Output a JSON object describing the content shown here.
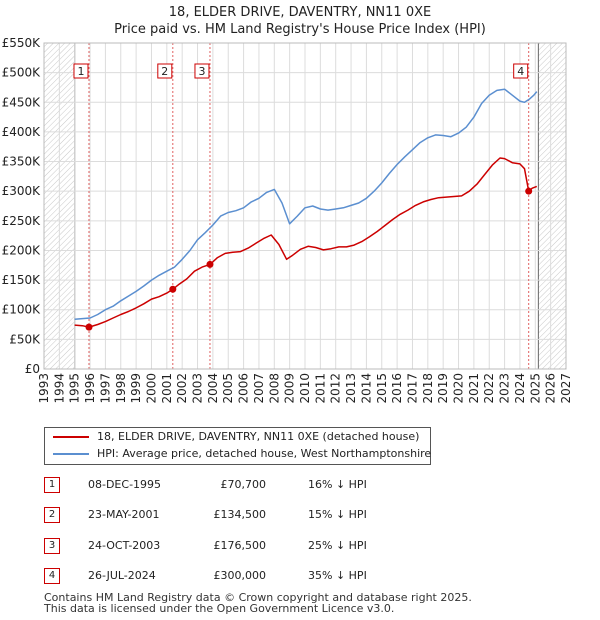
{
  "chart_data": {
    "type": "line",
    "title": "18, ELDER DRIVE, DAVENTRY, NN11 0XE",
    "subtitle": "Price paid vs. HM Land Registry's House Price Index (HPI)",
    "xlim": [
      1993,
      2027
    ],
    "ylim": [
      0,
      550000
    ],
    "x_ticks": [
      "1993",
      "1994",
      "1995",
      "1996",
      "1997",
      "1998",
      "1999",
      "2000",
      "2001",
      "2002",
      "2003",
      "2004",
      "2005",
      "2006",
      "2007",
      "2008",
      "2009",
      "2010",
      "2011",
      "2012",
      "2013",
      "2014",
      "2015",
      "2016",
      "2017",
      "2018",
      "2019",
      "2020",
      "2021",
      "2022",
      "2023",
      "2024",
      "2025",
      "2026",
      "2027"
    ],
    "y_ticks": [
      {
        "value": 0,
        "label": "£0"
      },
      {
        "value": 50000,
        "label": "£50K"
      },
      {
        "value": 100000,
        "label": "£100K"
      },
      {
        "value": 150000,
        "label": "£150K"
      },
      {
        "value": 200000,
        "label": "£200K"
      },
      {
        "value": 250000,
        "label": "£250K"
      },
      {
        "value": 300000,
        "label": "£300K"
      },
      {
        "value": 350000,
        "label": "£350K"
      },
      {
        "value": 400000,
        "label": "£400K"
      },
      {
        "value": 450000,
        "label": "£450K"
      },
      {
        "value": 500000,
        "label": "£500K"
      },
      {
        "value": 550000,
        "label": "£550K"
      }
    ],
    "grid": true,
    "data_range": [
      1995,
      2025.2
    ],
    "series": [
      {
        "name": "18, ELDER DRIVE, DAVENTRY, NN11 0XE (detached house)",
        "color": "#cc0000",
        "x": [
          1995.0,
          1995.5,
          1995.93,
          1996.5,
          1997.0,
          1997.5,
          1998.0,
          1998.5,
          1999.0,
          1999.5,
          2000.0,
          2000.5,
          2001.0,
          2001.39,
          2001.8,
          2002.3,
          2002.8,
          2003.3,
          2003.81,
          2004.3,
          2004.8,
          2005.3,
          2005.8,
          2006.3,
          2006.8,
          2007.3,
          2007.8,
          2008.3,
          2008.8,
          2009.2,
          2009.7,
          2010.2,
          2010.7,
          2011.2,
          2011.7,
          2012.2,
          2012.7,
          2013.2,
          2013.7,
          2014.2,
          2014.7,
          2015.2,
          2015.7,
          2016.2,
          2016.7,
          2017.2,
          2017.7,
          2018.2,
          2018.7,
          2019.2,
          2019.7,
          2020.2,
          2020.7,
          2021.2,
          2021.7,
          2022.2,
          2022.7,
          2023.0,
          2023.5,
          2024.0,
          2024.3,
          2024.57,
          2024.8,
          2025.1
        ],
        "y": [
          74000,
          73000,
          70700,
          75000,
          80000,
          86000,
          92000,
          97000,
          103000,
          110000,
          118000,
          122000,
          128000,
          134500,
          143000,
          152000,
          165000,
          172000,
          176500,
          188000,
          195000,
          197000,
          198000,
          204000,
          212000,
          220000,
          226000,
          210000,
          185000,
          192000,
          202000,
          207000,
          205000,
          201000,
          203000,
          206000,
          206000,
          209000,
          215000,
          223000,
          232000,
          242000,
          252000,
          261000,
          268000,
          276000,
          282000,
          286000,
          289000,
          290000,
          291000,
          292000,
          300000,
          312000,
          328000,
          344000,
          356000,
          355000,
          348000,
          346000,
          338000,
          300000,
          305000,
          308000
        ]
      },
      {
        "name": "HPI: Average price, detached house, West Northamptonshire",
        "color": "#5b8fd0",
        "x": [
          1995.0,
          1995.5,
          1996.0,
          1996.5,
          1997.0,
          1997.5,
          1998.0,
          1998.5,
          1999.0,
          1999.5,
          2000.0,
          2000.5,
          2001.0,
          2001.5,
          2002.0,
          2002.5,
          2003.0,
          2003.5,
          2004.0,
          2004.5,
          2005.0,
          2005.5,
          2006.0,
          2006.5,
          2007.0,
          2007.5,
          2008.0,
          2008.5,
          2009.0,
          2009.5,
          2010.0,
          2010.5,
          2011.0,
          2011.5,
          2012.0,
          2012.5,
          2013.0,
          2013.5,
          2014.0,
          2014.5,
          2015.0,
          2015.5,
          2016.0,
          2016.5,
          2017.0,
          2017.5,
          2018.0,
          2018.5,
          2019.0,
          2019.5,
          2020.0,
          2020.5,
          2021.0,
          2021.5,
          2022.0,
          2022.5,
          2023.0,
          2023.5,
          2024.0,
          2024.3,
          2024.6,
          2024.9,
          2025.1
        ],
        "y": [
          84000,
          85000,
          86000,
          92000,
          100000,
          106000,
          115000,
          123000,
          131000,
          140000,
          150000,
          158000,
          165000,
          172000,
          185000,
          200000,
          218000,
          230000,
          243000,
          258000,
          264000,
          267000,
          272000,
          282000,
          288000,
          298000,
          303000,
          280000,
          245000,
          258000,
          272000,
          275000,
          270000,
          268000,
          270000,
          272000,
          276000,
          280000,
          288000,
          300000,
          314000,
          330000,
          345000,
          358000,
          370000,
          382000,
          390000,
          395000,
          394000,
          392000,
          398000,
          408000,
          425000,
          448000,
          462000,
          470000,
          472000,
          462000,
          452000,
          450000,
          455000,
          462000,
          468000
        ]
      }
    ],
    "sales": [
      {
        "num": "1",
        "x": 1995.93,
        "y": 70700,
        "date": "08-DEC-1995",
        "price": "£70,700",
        "hpi": "16% ↓ HPI"
      },
      {
        "num": "2",
        "x": 2001.39,
        "y": 134500,
        "date": "23-MAY-2001",
        "price": "£134,500",
        "hpi": "15% ↓ HPI"
      },
      {
        "num": "3",
        "x": 2003.81,
        "y": 176500,
        "date": "24-OCT-2003",
        "price": "£176,500",
        "hpi": "25% ↓ HPI"
      },
      {
        "num": "4",
        "x": 2024.57,
        "y": 300000,
        "date": "26-JUL-2024",
        "price": "£300,000",
        "hpi": "35% ↓ HPI"
      }
    ]
  },
  "footer": {
    "line1": "Contains HM Land Registry data © Crown copyright and database right 2025.",
    "line2": "This data is licensed under the Open Government Licence v3.0."
  }
}
